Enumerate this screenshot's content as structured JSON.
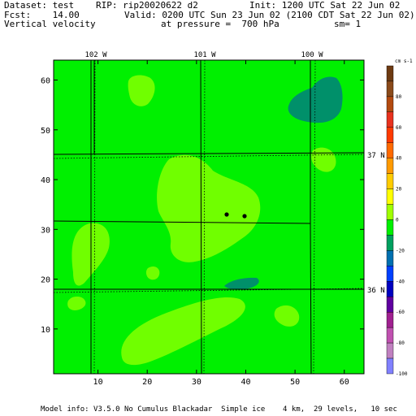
{
  "header": {
    "dataset": "Dataset: test",
    "rip": "RIP: rip20020622 d2",
    "init": "Init: 1200 UTC Sat 22 Jun 02",
    "fcst": "Fcst:    14.00",
    "valid": "Valid: 0200 UTC Sun 23 Jun 02 (2100 CDT Sat 22 Jun 02)",
    "field": "Vertical velocity",
    "pressure": "at pressure =  700 hPa",
    "smooth": "sm= 1"
  },
  "footer": "Model info: V3.5.0 No Cumulus Blackadar  Simple ice    4 km,  29 levels,   10 sec",
  "map": {
    "longitude_labels": [
      "102 W",
      "101 W",
      "100 W"
    ],
    "latitude_labels": [
      "37 N",
      "36 N"
    ],
    "x_ticks": [
      10,
      20,
      30,
      40,
      50,
      60
    ],
    "y_ticks": [
      10,
      20,
      30,
      40,
      50,
      60
    ],
    "x_range": [
      1,
      64
    ],
    "y_range": [
      1,
      64
    ]
  },
  "colorbar": {
    "unit": "cm s-1",
    "labels": [
      "80",
      "60",
      "40",
      "20",
      "0",
      "-20",
      "-40",
      "-60",
      "-80",
      "-100"
    ],
    "colors": [
      "#6e3a12",
      "#8a4a1a",
      "#b34a10",
      "#e8321e",
      "#ff3a00",
      "#ff6a00",
      "#ff9a00",
      "#ffcc00",
      "#ffff00",
      "#a0ff00",
      "#00f000",
      "#00a060",
      "#0070b0",
      "#0040ff",
      "#0000c0",
      "#6000a0",
      "#a02090",
      "#c050b0",
      "#c080c0",
      "#8080ff"
    ]
  },
  "colors": {
    "background": "#00f000",
    "light_green": "#70ff00",
    "teal": "#00906a",
    "border": "#000000"
  }
}
